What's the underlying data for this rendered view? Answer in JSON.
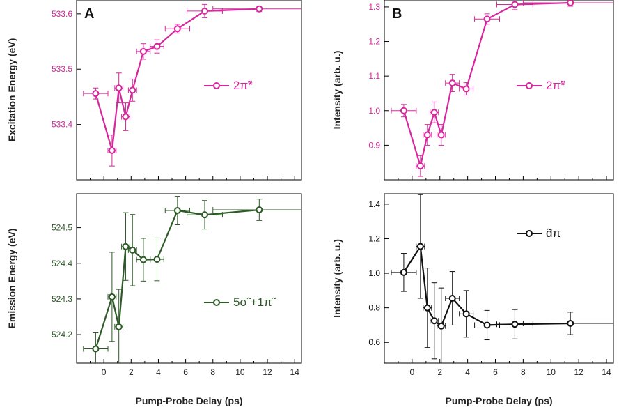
{
  "chart_data": [
    {
      "type": "line",
      "panel": "A",
      "panel_label": "A",
      "ylabel": "Excitation Energy (eV)",
      "xlabel": "",
      "xlim": [
        -2,
        14.5
      ],
      "ylim": [
        533.3,
        533.625
      ],
      "x_ticks": [
        0,
        2,
        4,
        6,
        8,
        10,
        12,
        14
      ],
      "x_tick_labels": [
        "",
        "",
        "",
        "",
        "",
        "",
        "",
        ""
      ],
      "y_ticks": [
        533.4,
        533.5,
        533.6
      ],
      "y_tick_labels": [
        "533.4",
        "533.5",
        "533.6"
      ],
      "color": "#d6289c",
      "marker": "circle",
      "legend_label": "2π̃*",
      "legend_position": "right",
      "grid": false,
      "series": [
        {
          "x": [
            -0.6,
            0.6,
            1.1,
            1.6,
            2.1,
            2.9,
            3.9,
            5.4,
            7.4,
            11.4
          ],
          "y": [
            533.456,
            533.353,
            533.466,
            533.414,
            533.462,
            533.532,
            533.541,
            533.573,
            533.605,
            533.609
          ],
          "xerr": [
            0.9,
            0.3,
            0.3,
            0.3,
            0.3,
            0.5,
            0.5,
            0.9,
            1.3,
            3.4
          ],
          "yerr": [
            0.01,
            0.028,
            0.027,
            0.025,
            0.02,
            0.014,
            0.012,
            0.008,
            0.012,
            0.005
          ]
        }
      ]
    },
    {
      "type": "line",
      "panel": "B",
      "panel_label": "B",
      "ylabel": "Intensity (arb. u.)",
      "xlabel": "",
      "xlim": [
        -2,
        14.5
      ],
      "ylim": [
        0.8,
        1.32
      ],
      "x_ticks": [
        0,
        2,
        4,
        6,
        8,
        10,
        12,
        14
      ],
      "x_tick_labels": [
        "",
        "",
        "",
        "",
        "",
        "",
        "",
        ""
      ],
      "y_ticks": [
        0.9,
        1.0,
        1.1,
        1.2,
        1.3
      ],
      "y_tick_labels": [
        "0.9",
        "1.0",
        "1.1",
        "1.2",
        "1.3"
      ],
      "color": "#d6289c",
      "marker": "circle",
      "legend_label": "2π̃*",
      "legend_position": "right",
      "grid": false,
      "series": [
        {
          "x": [
            -0.6,
            0.6,
            1.1,
            1.6,
            2.1,
            2.9,
            3.9,
            5.4,
            7.4,
            11.4
          ],
          "y": [
            1.0,
            0.84,
            0.93,
            0.995,
            0.93,
            1.08,
            1.063,
            1.265,
            1.307,
            1.312
          ],
          "xerr": [
            0.9,
            0.3,
            0.3,
            0.3,
            0.3,
            0.5,
            0.5,
            0.9,
            1.3,
            3.4
          ],
          "yerr": [
            0.018,
            0.03,
            0.03,
            0.03,
            0.03,
            0.025,
            0.018,
            0.015,
            0.015,
            0.01
          ]
        }
      ]
    },
    {
      "type": "line",
      "panel": "A",
      "ylabel": "Emission Energy (eV)",
      "xlabel": "Pump-Probe Delay (ps)",
      "xlim": [
        -2,
        14.5
      ],
      "ylim": [
        524.12,
        524.595
      ],
      "x_ticks": [
        0,
        2,
        4,
        6,
        8,
        10,
        12,
        14
      ],
      "x_tick_labels": [
        "0",
        "2",
        "4",
        "6",
        "8",
        "10",
        "12",
        "14"
      ],
      "y_ticks": [
        524.2,
        524.3,
        524.4,
        524.5
      ],
      "y_tick_labels": [
        "524.2",
        "524.3",
        "524.4",
        "524.5"
      ],
      "color": "#2d5a27",
      "marker": "circle",
      "legend_label": "5σ̃ +1π̃",
      "legend_position": "right",
      "grid": false,
      "series": [
        {
          "x": [
            -0.6,
            0.6,
            1.1,
            1.6,
            2.1,
            2.9,
            3.9,
            5.4,
            7.4,
            11.4
          ],
          "y": [
            524.16,
            524.306,
            524.222,
            524.447,
            524.437,
            524.41,
            524.411,
            524.548,
            524.536,
            524.55
          ],
          "xerr": [
            0.9,
            0.3,
            0.3,
            0.3,
            0.3,
            0.5,
            0.5,
            0.9,
            1.3,
            3.4
          ],
          "yerr": [
            0.045,
            0.125,
            0.105,
            0.095,
            0.1,
            0.06,
            0.06,
            0.04,
            0.04,
            0.03
          ]
        }
      ]
    },
    {
      "type": "line",
      "panel": "B",
      "ylabel": "Intensity (arb. u.)",
      "xlabel": "Pump-Probe Delay (ps)",
      "xlim": [
        -2,
        14.5
      ],
      "ylim": [
        0.48,
        1.46
      ],
      "x_ticks": [
        0,
        2,
        4,
        6,
        8,
        10,
        12,
        14
      ],
      "x_tick_labels": [
        "0",
        "2",
        "4",
        "6",
        "8",
        "10",
        "12",
        "14"
      ],
      "y_ticks": [
        0.6,
        0.8,
        1.0,
        1.2,
        1.4
      ],
      "y_tick_labels": [
        "0.6",
        "0.8",
        "1.0",
        "1.2",
        "1.4"
      ],
      "color": "#111111",
      "marker": "circle",
      "legend_label": "d̃π",
      "legend_position": "right",
      "grid": false,
      "series": [
        {
          "x": [
            -0.6,
            0.6,
            1.1,
            1.6,
            2.1,
            2.9,
            3.9,
            5.4,
            7.4,
            11.4
          ],
          "y": [
            1.005,
            1.155,
            0.8,
            0.725,
            0.695,
            0.855,
            0.765,
            0.7,
            0.705,
            0.71
          ],
          "xerr": [
            0.9,
            0.3,
            0.3,
            0.3,
            0.3,
            0.5,
            0.5,
            0.9,
            1.3,
            3.4
          ],
          "yerr": [
            0.11,
            0.3,
            0.23,
            0.22,
            0.22,
            0.155,
            0.135,
            0.085,
            0.085,
            0.065
          ]
        }
      ]
    }
  ]
}
